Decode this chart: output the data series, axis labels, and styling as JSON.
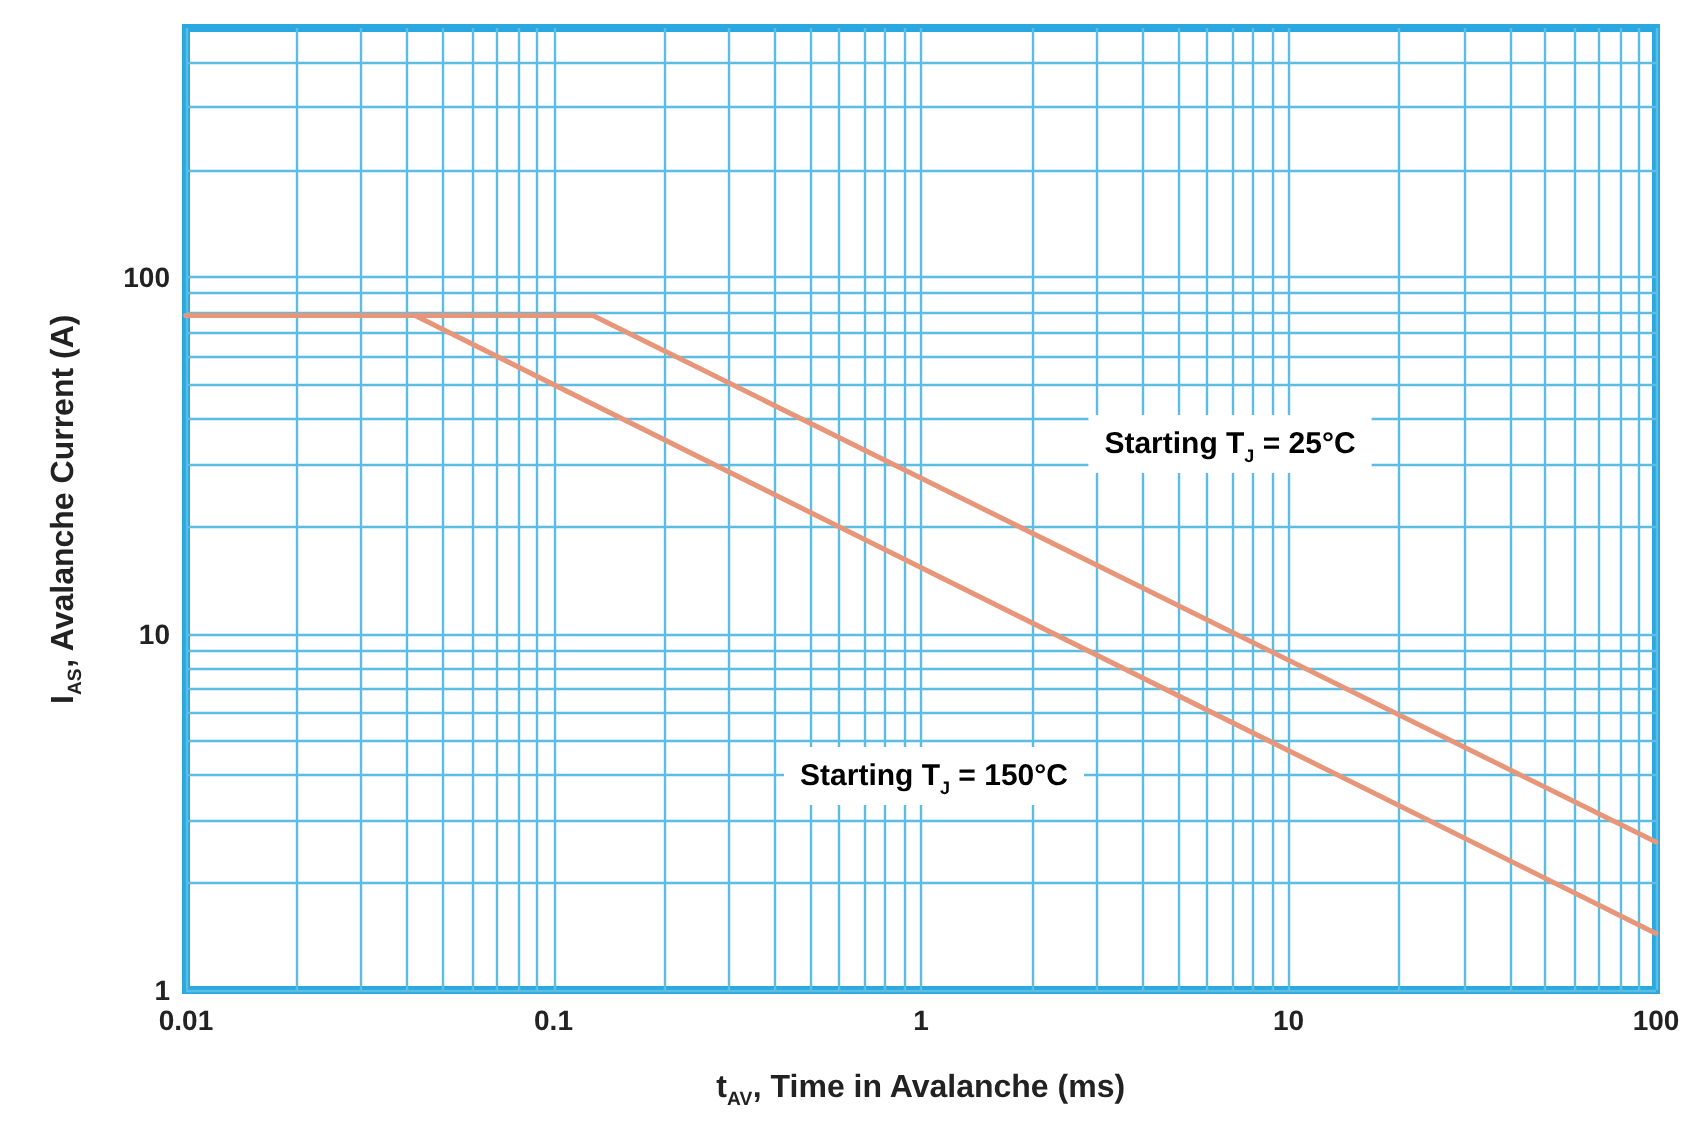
{
  "chart_data": {
    "type": "line",
    "xlabel": "t$_{AV}$, Time in Avalanche (ms)",
    "ylabel": "I$_{AS}$, Avalanche Current (A)",
    "log": "xy",
    "grid": true,
    "marker": "none",
    "line_style": "solid",
    "xlim": [
      0.01,
      100
    ],
    "xticks": [
      0.01,
      {
        "value": 0.02,
        "label": null
      },
      {
        "value": 0.03,
        "label": null
      },
      {
        "value": 0.04,
        "label": null
      },
      {
        "value": 0.05,
        "label": null
      },
      {
        "value": 0.06,
        "label": null
      },
      {
        "value": 0.07,
        "label": null
      },
      {
        "value": 0.08,
        "label": null
      },
      {
        "value": 0.09,
        "label": null
      },
      0.1,
      {
        "value": 0.2,
        "label": null
      },
      {
        "value": 0.3,
        "label": null
      },
      {
        "value": 0.4,
        "label": null
      },
      {
        "value": 0.5,
        "label": null
      },
      {
        "value": 0.6,
        "label": null
      },
      {
        "value": 0.7,
        "label": null
      },
      {
        "value": 0.8,
        "label": null
      },
      {
        "value": 0.9,
        "label": null
      },
      1,
      {
        "value": 2,
        "label": null
      },
      {
        "value": 3,
        "label": null
      },
      {
        "value": 4,
        "label": null
      },
      {
        "value": 5,
        "label": null
      },
      {
        "value": 6,
        "label": null
      },
      {
        "value": 7,
        "label": null
      },
      {
        "value": 8,
        "label": null
      },
      {
        "value": 9,
        "label": null
      },
      10,
      {
        "value": 20,
        "label": null
      },
      {
        "value": 30,
        "label": null
      },
      {
        "value": 40,
        "label": null
      },
      {
        "value": 50,
        "label": null
      },
      {
        "value": 60,
        "label": null
      },
      {
        "value": 70,
        "label": null
      },
      {
        "value": 80,
        "label": null
      },
      {
        "value": 90,
        "label": null
      },
      100
    ],
    "ylim": [
      1,
      500
    ],
    "yticks": [
      1,
      {
        "value": 2,
        "label": null
      },
      {
        "value": 3,
        "label": null
      },
      {
        "value": 4,
        "label": null
      },
      {
        "value": 5,
        "label": null
      },
      {
        "value": 6,
        "label": null
      },
      {
        "value": 7,
        "label": null
      },
      {
        "value": 8,
        "label": null
      },
      {
        "value": 9,
        "label": null
      },
      10,
      {
        "value": 20,
        "label": null
      },
      {
        "value": 30,
        "label": null
      },
      {
        "value": 40,
        "label": null
      },
      {
        "value": 50,
        "label": null
      },
      {
        "value": 60,
        "label": null
      },
      {
        "value": 70,
        "label": null
      },
      {
        "value": 80,
        "label": null
      },
      {
        "value": 90,
        "label": null
      },
      100,
      {
        "value": 200,
        "label": null
      },
      {
        "value": 300,
        "label": null
      },
      {
        "value": 400,
        "label": null
      }
    ],
    "series": [
      {
        "color": "#e8967a",
        "x": [
          0.01,
          0.128,
          100
        ],
        "values": [
          78,
          78,
          2.6
        ]
      },
      {
        "color": "#e8967a",
        "x": [
          0.01,
          0.042,
          100
        ],
        "values": [
          78,
          78,
          1.44
        ]
      }
    ],
    "annotations": [
      "Starting T$_{J}$ = 25°C",
      "Starting T$_{J}$ = 150°C"
    ]
  }
}
